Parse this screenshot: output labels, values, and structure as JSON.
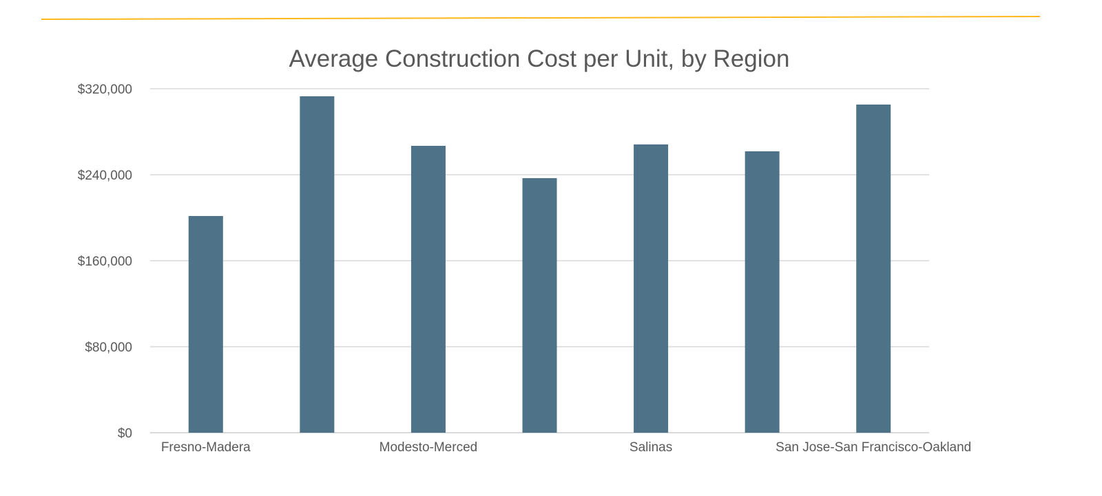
{
  "accent_line_color": "#FFB81C",
  "chart_data": {
    "type": "bar",
    "title": "Average Construction Cost per Unit, by Region",
    "xlabel": "",
    "ylabel": "",
    "categories": [
      "Fresno-Madera",
      "",
      "Modesto-Merced",
      "",
      "Salinas",
      "",
      "San Jose-San Francisco-Oakland"
    ],
    "values": [
      201600,
      313000,
      266900,
      236800,
      268200,
      261800,
      305300
    ],
    "ylim": [
      0,
      320000
    ],
    "yticks": [
      0,
      80000,
      160000,
      240000,
      320000
    ],
    "ytick_labels": [
      "$0",
      "$80,000",
      "$160,000",
      "$240,000",
      "$320,000"
    ],
    "grid": true,
    "bar_color": "#4E7389",
    "grid_color": "#D9D9D9"
  }
}
